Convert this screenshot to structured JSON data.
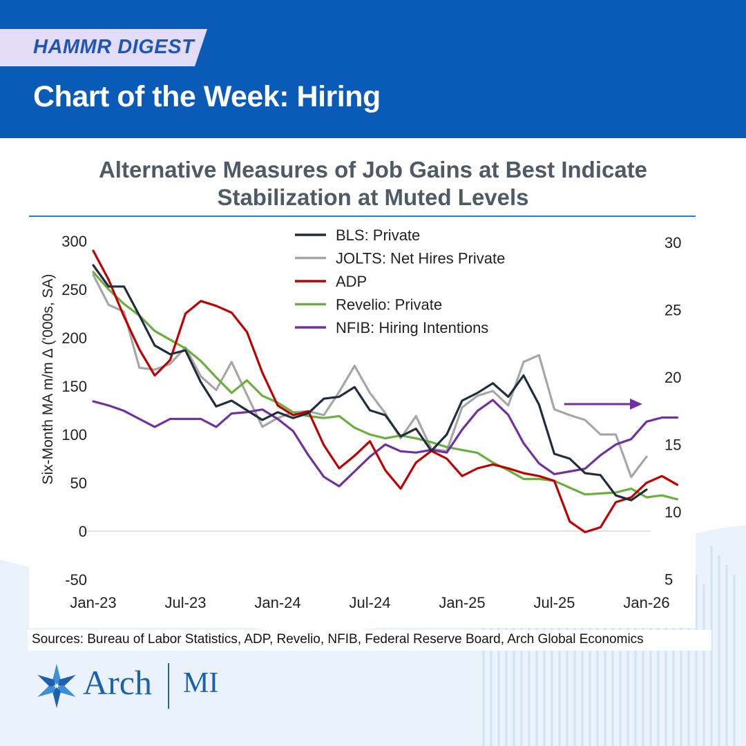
{
  "header": {
    "tag": "HAMMR DIGEST",
    "title": "Chart of the Week: Hiring"
  },
  "sources": "Sources: Bureau of Labor Statistics, ADP, Revelio, NFIB, Federal Reserve Board, Arch Global Economics",
  "logo": {
    "name": "Arch",
    "suffix": "MI"
  },
  "colors": {
    "header_bg": "#0a5bb8",
    "tag_bg": "#e2dcf6",
    "rule": "#1f80c7"
  },
  "chart_data": {
    "type": "line",
    "title_line1": "Alternative Measures of Job Gains at Best Indicate",
    "title_line2": "Stabilization at Muted Levels",
    "ylabel": "Six-Month MA m/m Δ ('000s, SA)",
    "ylim": [
      -50,
      300
    ],
    "y_ticks": [
      "300",
      "250",
      "200",
      "150",
      "100",
      "50",
      "0",
      "-50"
    ],
    "y_tick_values": [
      300,
      250,
      200,
      150,
      100,
      50,
      0,
      -50
    ],
    "y2lim": [
      5,
      30
    ],
    "y2_ticks": [
      "30",
      "25",
      "20",
      "15",
      "10",
      "5"
    ],
    "y2_tick_values": [
      30,
      25,
      20,
      15,
      10,
      5
    ],
    "x_ticks": [
      "Jan-23",
      "Jul-23",
      "Jan-24",
      "Jul-24",
      "Jan-25",
      "Jul-25",
      "Jan-26"
    ],
    "x_tick_index": [
      0,
      6,
      12,
      18,
      24,
      30,
      36
    ],
    "arrow": {
      "index_from": 31,
      "index_to": 36,
      "y2_value": 18.0,
      "color": "#7030a0"
    },
    "series": [
      {
        "name": "BLS: Private",
        "color": "#1f2d3d",
        "axis": "left",
        "start": 0,
        "values": [
          275,
          253,
          253,
          223,
          192,
          183,
          187,
          154,
          129,
          135,
          125,
          115,
          123,
          117,
          122,
          137,
          139,
          149,
          125,
          120,
          98,
          106,
          83,
          100,
          135,
          143,
          153,
          139,
          161,
          131,
          80,
          75,
          60,
          58,
          37,
          32,
          43
        ]
      },
      {
        "name": "JOLTS: Net Hires Private",
        "color": "#a6a6a6",
        "axis": "left",
        "start": 0,
        "values": [
          265,
          234,
          227,
          169,
          167,
          173,
          190,
          160,
          146,
          175,
          141,
          108,
          117,
          123,
          124,
          120,
          144,
          171,
          143,
          122,
          96,
          119,
          85,
          83,
          128,
          140,
          145,
          130,
          175,
          182,
          126,
          120,
          115,
          100,
          100,
          56,
          77
        ]
      },
      {
        "name": "ADP",
        "color": "#c00000",
        "axis": "left",
        "start": 0,
        "values": [
          290,
          260,
          222,
          188,
          161,
          177,
          225,
          238,
          233,
          226,
          206,
          164,
          130,
          120,
          124,
          89,
          65,
          78,
          93,
          63,
          44,
          71,
          83,
          75,
          57,
          65,
          69,
          65,
          60,
          57,
          52,
          10,
          -1,
          4,
          30,
          35,
          50,
          57,
          48
        ]
      },
      {
        "name": "Revelio: Private",
        "color": "#6aaf3d",
        "axis": "left",
        "start": 0,
        "values": [
          268,
          250,
          235,
          223,
          207,
          198,
          189,
          176,
          159,
          143,
          156,
          140,
          133,
          123,
          119,
          117,
          119,
          107,
          100,
          96,
          99,
          96,
          92,
          87,
          84,
          81,
          71,
          63,
          54,
          54,
          52,
          45,
          38,
          39,
          40,
          44,
          35,
          37,
          33
        ]
      },
      {
        "name": "NFIB: Hiring Intentions",
        "color": "#7030a0",
        "axis": "right",
        "start": 0,
        "values": [
          18.2,
          17.9,
          17.5,
          16.9,
          16.3,
          16.9,
          16.9,
          16.9,
          16.3,
          17.3,
          17.4,
          17.6,
          16.9,
          16.0,
          14.2,
          12.6,
          11.9,
          13.0,
          14.1,
          15.0,
          14.5,
          14.4,
          14.6,
          14.4,
          16.1,
          17.5,
          18.3,
          17.2,
          15.1,
          13.6,
          12.8,
          13.0,
          13.2,
          14.2,
          15.0,
          15.4,
          16.7,
          17.0,
          17.0
        ]
      }
    ]
  }
}
